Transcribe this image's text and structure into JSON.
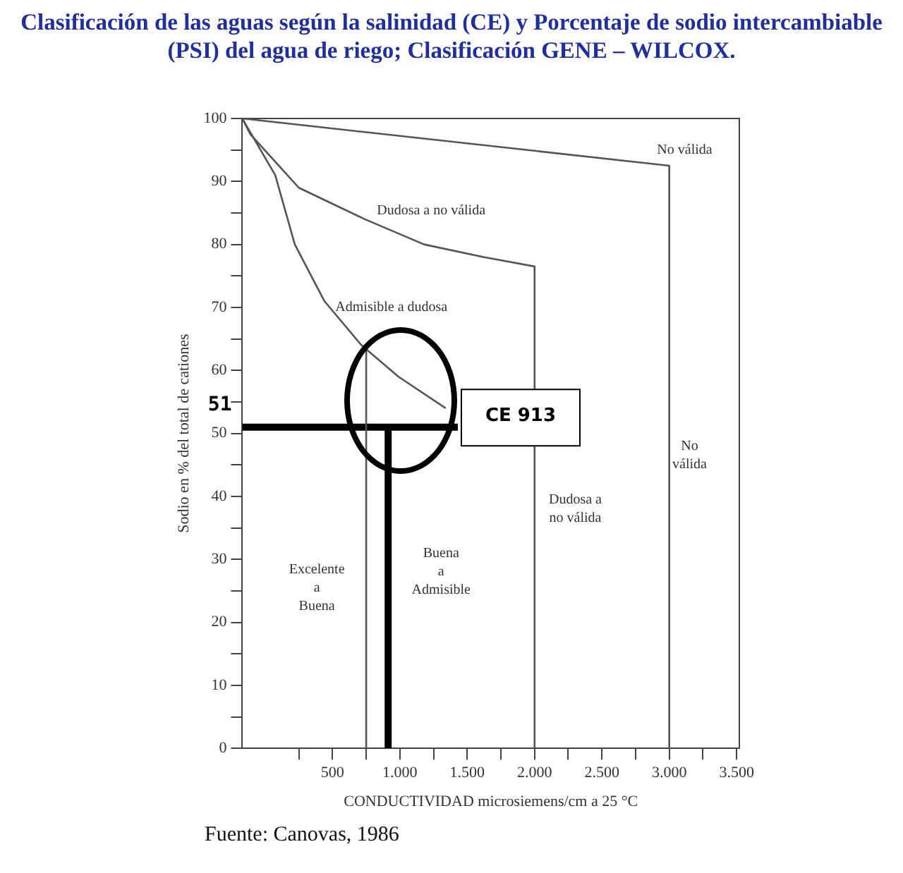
{
  "chart_data": {
    "type": "line",
    "title": "Clasificación de las aguas según la salinidad (CE) y Porcentaje de sodio intercambiable (PSI) del agua de riego; Clasificación GENE – WILCOX.",
    "xlabel": "CONDUCTIVIDAD microsiemens/cm a 25 °C",
    "ylabel": "Sodio en % del total de cationes",
    "xlim": [
      -170,
      3520
    ],
    "ylim": [
      0,
      100
    ],
    "xticks": [
      {
        "value": 250,
        "label": null
      },
      500,
      {
        "value": 750,
        "label": null
      },
      {
        "value": 1000,
        "label": "1.000"
      },
      {
        "value": 1250,
        "label": null
      },
      {
        "value": 1500,
        "label": "1.500"
      },
      {
        "value": 1750,
        "label": null
      },
      {
        "value": 2000,
        "label": "2.000"
      },
      {
        "value": 2250,
        "label": null
      },
      {
        "value": 2500,
        "label": "2.500"
      },
      {
        "value": 2750,
        "label": null
      },
      {
        "value": 3000,
        "label": "3.000"
      },
      {
        "value": 3250,
        "label": null
      },
      {
        "value": 3500,
        "label": "3.500"
      }
    ],
    "yticks": [
      0,
      {
        "value": 5,
        "label": null
      },
      10,
      {
        "value": 15,
        "label": null
      },
      20,
      {
        "value": 25,
        "label": null
      },
      30,
      {
        "value": 35,
        "label": null
      },
      40,
      {
        "value": 45,
        "label": null
      },
      50,
      {
        "value": 55,
        "label": null
      },
      60,
      {
        "value": 65,
        "label": null
      },
      70,
      {
        "value": 75,
        "label": null
      },
      80,
      {
        "value": 85,
        "label": null
      },
      90,
      {
        "value": 95,
        "label": null
      },
      100
    ],
    "grid": false,
    "legend": false,
    "marker": "none",
    "series": [
      {
        "color": "#555555",
        "x": [
          -170,
          3000,
          3000
        ],
        "values": [
          100,
          92.5,
          0
        ]
      },
      {
        "color": "#555555",
        "x": [
          -170,
          -110,
          250,
          740,
          1180,
          1620,
          2000,
          2000
        ],
        "values": [
          100,
          97.5,
          89,
          84,
          80,
          78,
          76.5,
          0
        ]
      },
      {
        "color": "#555555",
        "x": [
          -170,
          75,
          220,
          440,
          715,
          990,
          1340
        ],
        "values": [
          100,
          91,
          80,
          71,
          64,
          59,
          54
        ]
      },
      {
        "color": "#555555",
        "x": [
          750,
          750
        ],
        "values": [
          0,
          64
        ]
      },
      {
        "color": "#000000",
        "x": [
          -170,
          1430
        ],
        "values": [
          51,
          51
        ]
      },
      {
        "color": "#000000",
        "x": [
          913,
          913
        ],
        "values": [
          0,
          51
        ]
      }
    ],
    "annotations": [
      "No válida",
      "Dudosa a no válida",
      "Admisible a dudosa",
      "51",
      "CE 913",
      "No\nválida",
      "Dudosa a\nno válida",
      "Excelente\na\nBuena",
      "Buena\na\nAdmisible",
      "Fuente: Canovas, 1986"
    ]
  }
}
